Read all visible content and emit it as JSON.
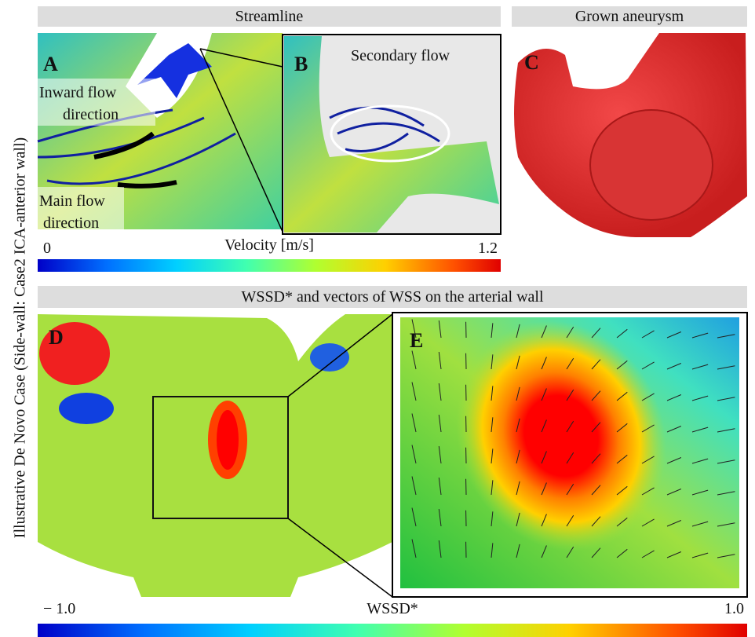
{
  "side_label": "Illustrative De Novo Case (Side-wall: Case2 ICA-anterior wall)",
  "top": {
    "streamline_header": "Streamline",
    "aneurysm_header": "Grown aneurysm",
    "panel_a": {
      "letter": "A",
      "inward": [
        "Inward flow",
        "direction"
      ],
      "main": [
        "Main flow",
        "direction"
      ]
    },
    "panel_b": {
      "letter": "B",
      "secondary": "Secondary flow"
    },
    "panel_c": {
      "letter": "C"
    },
    "velocity_bar": {
      "title": "Velocity [m/s]",
      "min": "0",
      "max": "1.2"
    }
  },
  "bottom": {
    "header": "WSSD* and vectors of WSS on the arterial wall",
    "panel_d": {
      "letter": "D"
    },
    "panel_e": {
      "letter": "E"
    },
    "wssd_bar": {
      "title": "WSSD*",
      "min": "− 1.0",
      "max": "1.0"
    }
  }
}
